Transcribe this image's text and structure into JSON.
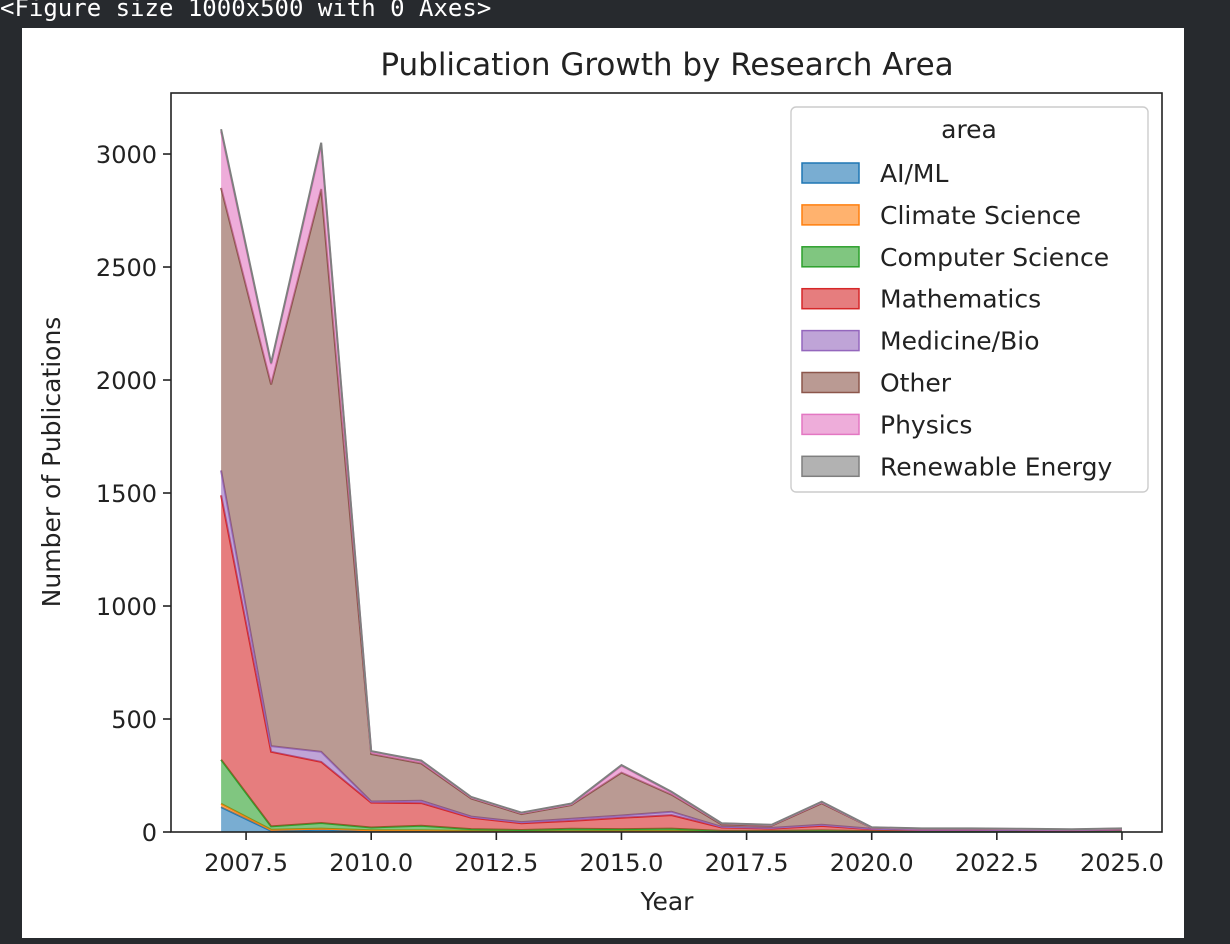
{
  "header": {
    "caption": "<Figure size 1000x500 with 0 Axes>"
  },
  "chart_data": {
    "type": "area",
    "stacked": true,
    "title": "Publication Growth by Research Area",
    "xlabel": "Year",
    "ylabel": "Number of Publications",
    "xlim": [
      2006.0,
      2025.8
    ],
    "ylim": [
      0,
      3270
    ],
    "xticks": [
      2007.5,
      2010.0,
      2012.5,
      2015.0,
      2017.5,
      2020.0,
      2022.5,
      2025.0
    ],
    "xtick_labels": [
      "2007.5",
      "2010.0",
      "2012.5",
      "2015.0",
      "2017.5",
      "2020.0",
      "2022.5",
      "2025.0"
    ],
    "yticks": [
      0,
      500,
      1000,
      1500,
      2000,
      2500,
      3000
    ],
    "ytick_labels": [
      "0",
      "500",
      "1000",
      "1500",
      "2000",
      "2500",
      "3000"
    ],
    "grid": false,
    "legend": {
      "title": "area",
      "placement": "top-right"
    },
    "x": [
      2007,
      2008,
      2009,
      2010,
      2011,
      2012,
      2013,
      2014,
      2015,
      2016,
      2017,
      2018,
      2019,
      2020,
      2021,
      2022,
      2023,
      2024,
      2025
    ],
    "series": [
      {
        "name": "AI/ML",
        "color": "#1f77b4",
        "values": [
          110,
          5,
          10,
          5,
          5,
          3,
          2,
          2,
          3,
          3,
          1,
          1,
          1,
          1,
          1,
          1,
          1,
          1,
          2
        ]
      },
      {
        "name": "Climate Science",
        "color": "#ff7f0e",
        "values": [
          15,
          5,
          5,
          3,
          3,
          2,
          2,
          2,
          2,
          2,
          1,
          1,
          1,
          1,
          1,
          1,
          1,
          1,
          1
        ]
      },
      {
        "name": "Computer Science",
        "color": "#2ca02c",
        "values": [
          195,
          15,
          25,
          12,
          20,
          8,
          5,
          10,
          8,
          10,
          3,
          3,
          5,
          2,
          2,
          2,
          2,
          2,
          3
        ]
      },
      {
        "name": "Mathematics",
        "color": "#d62728",
        "values": [
          1170,
          330,
          270,
          110,
          100,
          50,
          30,
          35,
          50,
          60,
          15,
          10,
          20,
          8,
          5,
          5,
          4,
          3,
          4
        ]
      },
      {
        "name": "Medicine/Bio",
        "color": "#9467bd",
        "values": [
          110,
          25,
          45,
          5,
          10,
          5,
          5,
          10,
          10,
          15,
          3,
          3,
          5,
          2,
          1,
          1,
          1,
          1,
          1
        ]
      },
      {
        "name": "Other",
        "color": "#8c564b",
        "values": [
          1250,
          1600,
          2490,
          210,
          165,
          80,
          35,
          60,
          190,
          75,
          10,
          10,
          95,
          5,
          4,
          4,
          3,
          2,
          3
        ]
      },
      {
        "name": "Physics",
        "color": "#e377c2",
        "values": [
          250,
          90,
          195,
          10,
          10,
          5,
          5,
          5,
          30,
          10,
          5,
          3,
          5,
          1,
          1,
          1,
          1,
          1,
          1
        ]
      },
      {
        "name": "Renewable Energy",
        "color": "#7f7f7f",
        "values": [
          10,
          5,
          10,
          3,
          3,
          2,
          2,
          2,
          3,
          3,
          1,
          1,
          2,
          1,
          1,
          1,
          1,
          1,
          1
        ]
      }
    ]
  }
}
